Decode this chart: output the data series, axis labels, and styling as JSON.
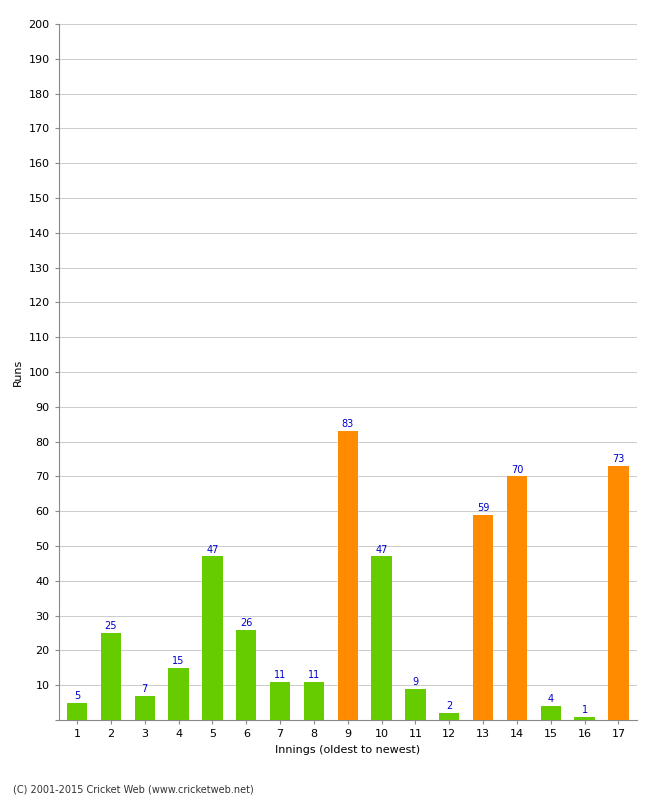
{
  "xlabel": "Innings (oldest to newest)",
  "ylabel": "Runs",
  "categories": [
    "1",
    "2",
    "3",
    "4",
    "5",
    "6",
    "7",
    "8",
    "9",
    "10",
    "11",
    "12",
    "13",
    "14",
    "15",
    "16",
    "17"
  ],
  "values": [
    5,
    25,
    7,
    15,
    47,
    26,
    11,
    11,
    83,
    47,
    9,
    2,
    59,
    70,
    4,
    1,
    73
  ],
  "colors": [
    "#66cc00",
    "#66cc00",
    "#66cc00",
    "#66cc00",
    "#66cc00",
    "#66cc00",
    "#66cc00",
    "#66cc00",
    "#ff8c00",
    "#66cc00",
    "#66cc00",
    "#66cc00",
    "#ff8c00",
    "#ff8c00",
    "#66cc00",
    "#66cc00",
    "#ff8c00"
  ],
  "ylim": [
    0,
    200
  ],
  "yticks": [
    0,
    10,
    20,
    30,
    40,
    50,
    60,
    70,
    80,
    90,
    100,
    110,
    120,
    130,
    140,
    150,
    160,
    170,
    180,
    190,
    200
  ],
  "label_color": "#0000cc",
  "label_fontsize": 7,
  "axis_fontsize": 8,
  "tick_fontsize": 8,
  "copyright": "(C) 2001-2015 Cricket Web (www.cricketweb.net)",
  "background_color": "#ffffff",
  "grid_color": "#cccccc",
  "bar_width": 0.6
}
